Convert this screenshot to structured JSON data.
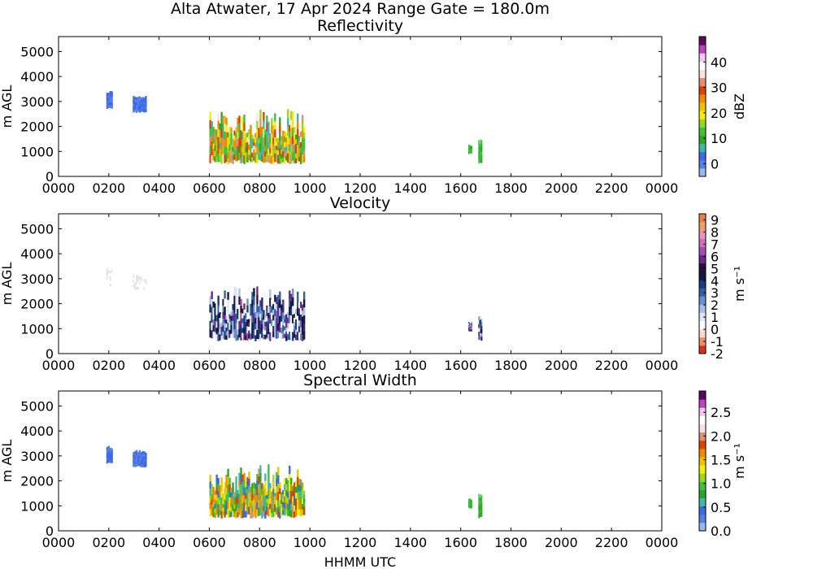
{
  "title": "Alta Atwater, 17 Apr 2024 Range Gate = 180.0m",
  "chart_data": [
    {
      "type": "heatmap",
      "title": "Reflectivity",
      "xlabel": "",
      "ylabel": "m AGL",
      "x_ticks": [
        "0000",
        "0200",
        "0400",
        "0600",
        "0800",
        "1000",
        "1200",
        "1400",
        "1600",
        "1800",
        "2000",
        "2200",
        "0000"
      ],
      "x_range_hours": [
        0,
        24
      ],
      "y_ticks": [
        "0",
        "1000",
        "2000",
        "3000",
        "4000",
        "5000"
      ],
      "ylim": [
        0,
        5600
      ],
      "colorbar": {
        "label": "dBZ",
        "min": -5,
        "max": 50,
        "ticks": [
          "0",
          "10",
          "20",
          "30",
          "40"
        ],
        "tick_values": [
          0,
          10,
          20,
          30,
          40
        ],
        "colors": [
          "#9ab6ee",
          "#5b7fe8",
          "#3b6be6",
          "#3fb8a8",
          "#2aa82a",
          "#3ec23e",
          "#9ad81a",
          "#f0f000",
          "#f2c200",
          "#f08a00",
          "#e04000",
          "#e09070",
          "#f7e6e0",
          "#ffffff",
          "#f0c8f0",
          "#c040c0",
          "#5a0a5a"
        ]
      },
      "echoes": [
        {
          "start_hour": 1.9,
          "end_hour": 2.15,
          "base_m": 2700,
          "top_m": 3450,
          "level": 0.12
        },
        {
          "start_hour": 2.95,
          "end_hour": 3.5,
          "base_m": 2550,
          "top_m": 3250,
          "level": 0.12
        },
        {
          "start_hour": 6.0,
          "end_hour": 9.8,
          "base_m": 500,
          "top_m": 2700,
          "level": 0.45
        },
        {
          "start_hour": 16.3,
          "end_hour": 16.45,
          "base_m": 900,
          "top_m": 1300,
          "level": 0.3
        },
        {
          "start_hour": 16.7,
          "end_hour": 16.85,
          "base_m": 500,
          "top_m": 1500,
          "level": 0.3
        }
      ]
    },
    {
      "type": "heatmap",
      "title": "Velocity",
      "xlabel": "",
      "ylabel": "m AGL",
      "x_ticks": [
        "0000",
        "0200",
        "0400",
        "0600",
        "0800",
        "1000",
        "1200",
        "1400",
        "1600",
        "1800",
        "2000",
        "2200",
        "0000"
      ],
      "x_range_hours": [
        0,
        24
      ],
      "y_ticks": [
        "0",
        "1000",
        "2000",
        "3000",
        "4000",
        "5000"
      ],
      "ylim": [
        0,
        5600
      ],
      "colorbar": {
        "label": "m s⁻¹",
        "min": -2,
        "max": 9.5,
        "ticks": [
          "-2",
          "-1",
          "0",
          "1",
          "2",
          "3",
          "4",
          "5",
          "6",
          "7",
          "8",
          "9"
        ],
        "tick_values": [
          -2,
          -1,
          0,
          1,
          2,
          3,
          4,
          5,
          6,
          7,
          8,
          9
        ],
        "colors": [
          "#d9301a",
          "#f08e70",
          "#f8dcd2",
          "#ffffff",
          "#dce6f5",
          "#a8c0e6",
          "#6a90cc",
          "#3060a8",
          "#1a3a78",
          "#0d1a40",
          "#2a1040",
          "#6a2a8a",
          "#a050b0",
          "#d070c0",
          "#f090c0",
          "#f0a070",
          "#f08040"
        ]
      },
      "echoes": [
        {
          "start_hour": 1.9,
          "end_hour": 2.15,
          "base_m": 2700,
          "top_m": 3450,
          "level": 0.22
        },
        {
          "start_hour": 2.95,
          "end_hour": 3.5,
          "base_m": 2550,
          "top_m": 3250,
          "level": 0.22
        },
        {
          "start_hour": 6.0,
          "end_hour": 9.8,
          "base_m": 500,
          "top_m": 2700,
          "level": 0.45
        },
        {
          "start_hour": 16.3,
          "end_hour": 16.45,
          "base_m": 900,
          "top_m": 1300,
          "level": 0.55
        },
        {
          "start_hour": 16.7,
          "end_hour": 16.85,
          "base_m": 500,
          "top_m": 1500,
          "level": 0.55
        }
      ]
    },
    {
      "type": "heatmap",
      "title": "Spectral Width",
      "xlabel": "HHMM UTC",
      "ylabel": "m AGL",
      "x_ticks": [
        "0000",
        "0200",
        "0400",
        "0600",
        "0800",
        "1000",
        "1200",
        "1400",
        "1600",
        "1800",
        "2000",
        "2200",
        "0000"
      ],
      "x_range_hours": [
        0,
        24
      ],
      "y_ticks": [
        "0",
        "1000",
        "2000",
        "3000",
        "4000",
        "5000"
      ],
      "ylim": [
        0,
        5600
      ],
      "colorbar": {
        "label": "m s⁻¹",
        "min": 0,
        "max": 2.95,
        "ticks": [
          "0.0",
          "0.5",
          "1.0",
          "1.5",
          "2.0",
          "2.5"
        ],
        "tick_values": [
          0,
          0.5,
          1.0,
          1.5,
          2.0,
          2.5
        ],
        "colors": [
          "#9ab6ee",
          "#5b7fe8",
          "#3b6be6",
          "#3fb8a8",
          "#2aa82a",
          "#3ec23e",
          "#9ad81a",
          "#f0f000",
          "#f2c200",
          "#f08a00",
          "#e04000",
          "#e09070",
          "#f7e6e0",
          "#ffffff",
          "#f0c8f0",
          "#c040c0",
          "#5a0a5a"
        ]
      },
      "echoes": [
        {
          "start_hour": 1.9,
          "end_hour": 2.15,
          "base_m": 2700,
          "top_m": 3450,
          "level": 0.12
        },
        {
          "start_hour": 2.95,
          "end_hour": 3.5,
          "base_m": 2550,
          "top_m": 3250,
          "level": 0.12
        },
        {
          "start_hour": 6.0,
          "end_hour": 9.8,
          "base_m": 500,
          "top_m": 2700,
          "level": 0.4
        },
        {
          "start_hour": 16.3,
          "end_hour": 16.45,
          "base_m": 900,
          "top_m": 1300,
          "level": 0.3
        },
        {
          "start_hour": 16.7,
          "end_hour": 16.85,
          "base_m": 500,
          "top_m": 1500,
          "level": 0.3
        }
      ]
    }
  ]
}
